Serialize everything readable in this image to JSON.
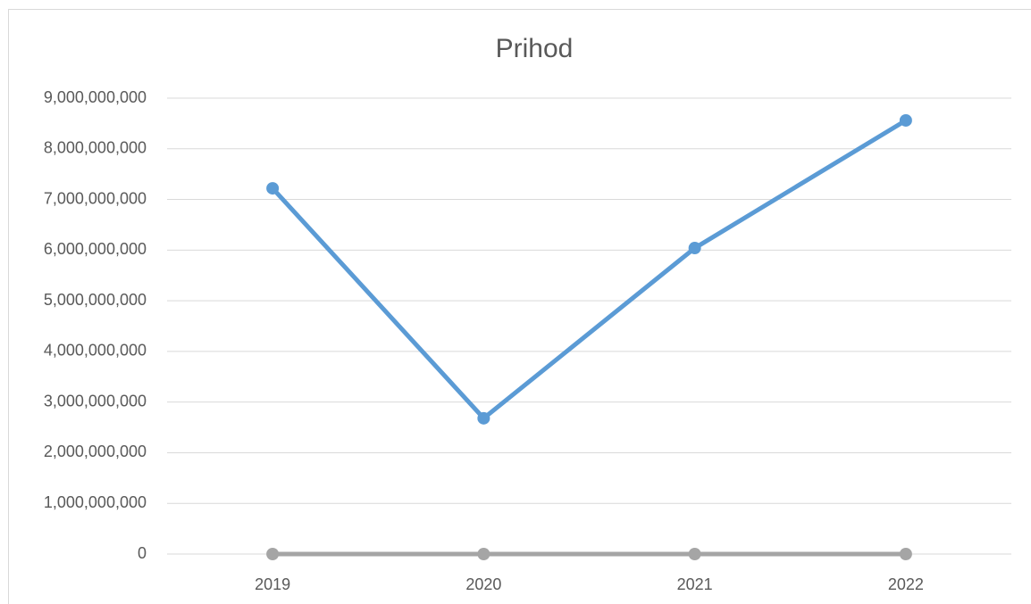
{
  "chart_data": {
    "type": "line",
    "title": "Prihod",
    "categories": [
      "2019",
      "2020",
      "2021",
      "2022"
    ],
    "series": [
      {
        "color": "#a5a5a5",
        "values": [
          0,
          0,
          0,
          0
        ]
      },
      {
        "color": "#5b9bd5",
        "values": [
          7220000000,
          2680000000,
          6040000000,
          8560000000
        ]
      }
    ],
    "ylim": [
      0,
      9000000000
    ],
    "yticks": [
      0,
      {
        "value": 1000000000,
        "label": "1,000,000,000"
      },
      {
        "value": 2000000000,
        "label": "2,000,000,000"
      },
      {
        "value": 3000000000,
        "label": "3,000,000,000"
      },
      {
        "value": 4000000000,
        "label": "4,000,000,000"
      },
      {
        "value": 5000000000,
        "label": "5,000,000,000"
      },
      {
        "value": 6000000000,
        "label": "6,000,000,000"
      },
      {
        "value": 7000000000,
        "label": "7,000,000,000"
      },
      {
        "value": 8000000000,
        "label": "8,000,000,000"
      },
      {
        "value": 9000000000,
        "label": "9,000,000,000"
      }
    ],
    "grid": true
  }
}
